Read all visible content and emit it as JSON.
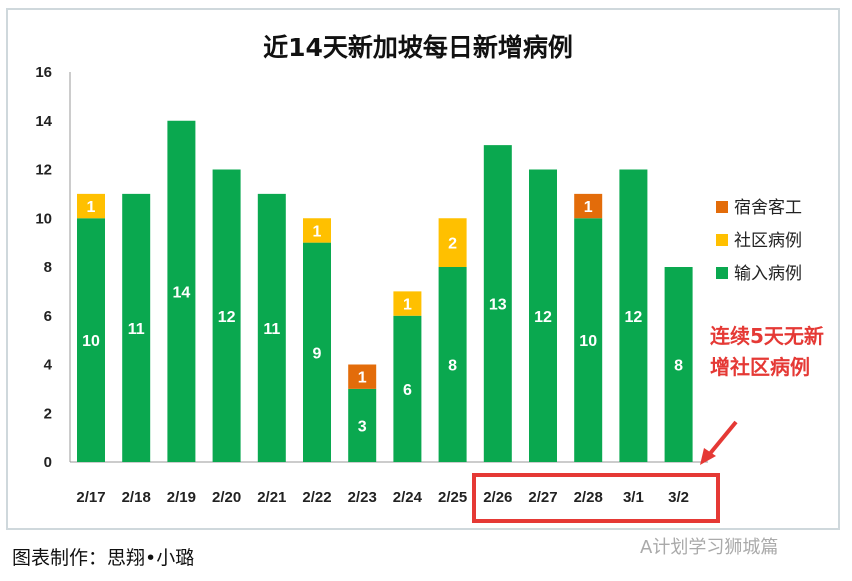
{
  "chart_data": {
    "type": "bar",
    "stacked": true,
    "title": "近14天新加坡每日新增病例",
    "categories": [
      "2/17",
      "2/18",
      "2/19",
      "2/20",
      "2/21",
      "2/22",
      "2/23",
      "2/24",
      "2/25",
      "2/26",
      "2/27",
      "2/28",
      "3/1",
      "3/2"
    ],
    "series": [
      {
        "name": "输入病例",
        "color": "#0aa84f",
        "values": [
          10,
          11,
          14,
          12,
          11,
          9,
          3,
          6,
          8,
          13,
          12,
          10,
          12,
          8
        ]
      },
      {
        "name": "社区病例",
        "color": "#ffc000",
        "values": [
          1,
          0,
          0,
          0,
          0,
          1,
          0,
          1,
          2,
          0,
          0,
          0,
          0,
          0
        ]
      },
      {
        "name": "宿舍客工",
        "color": "#e36c0a",
        "values": [
          0,
          0,
          0,
          0,
          0,
          0,
          1,
          0,
          0,
          0,
          0,
          1,
          0,
          0
        ]
      }
    ],
    "legend_order": [
      "宿舍客工",
      "社区病例",
      "输入病例"
    ],
    "legend_placement": "right",
    "ylim": [
      0,
      16
    ],
    "yticks": [
      0,
      2,
      4,
      6,
      8,
      10,
      12,
      14,
      16
    ],
    "annotation": [
      "连续5天无新",
      "增社区病例"
    ],
    "annotation_color": "#e53935",
    "xlabel": "",
    "ylabel": ""
  },
  "credit": "图表制作：思翔•小璐",
  "watermark": "A计划学习狮城篇"
}
